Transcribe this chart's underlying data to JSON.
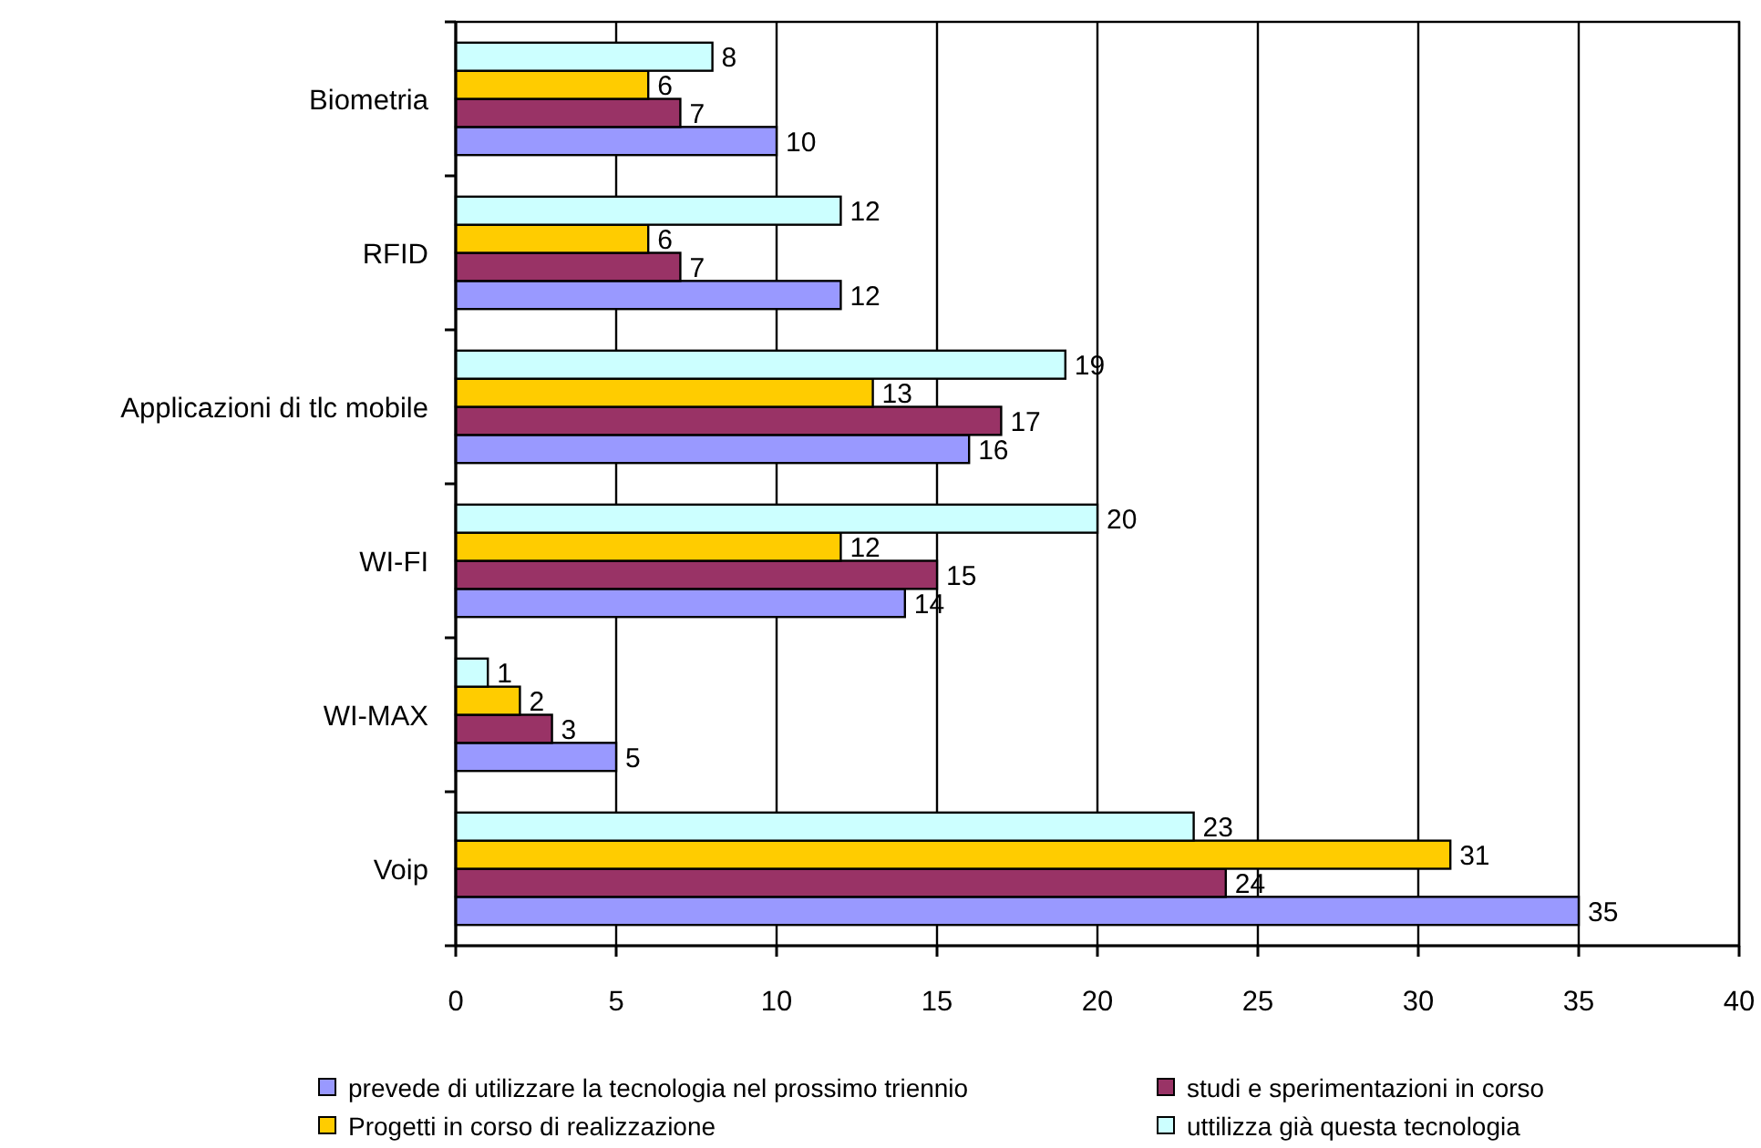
{
  "chart_data": {
    "type": "bar",
    "orientation": "horizontal",
    "categories": [
      "Biometria",
      "RFID",
      "Applicazioni di tlc mobile",
      "WI-FI",
      "WI-MAX",
      "Voip"
    ],
    "series": [
      {
        "name": "prevede di utilizzare la tecnologia nel prossimo triennio",
        "color": "#9999ff",
        "values": [
          10,
          12,
          16,
          14,
          5,
          35
        ]
      },
      {
        "name": "studi e sperimentazioni in corso",
        "color": "#993366",
        "values": [
          7,
          7,
          17,
          15,
          3,
          24
        ]
      },
      {
        "name": "Progetti in corso di realizzazione",
        "color": "#ffcc00",
        "values": [
          6,
          6,
          13,
          12,
          2,
          31
        ]
      },
      {
        "name": "uttilizza già questa tecnologia",
        "color": "#ccffff",
        "values": [
          8,
          12,
          19,
          20,
          1,
          23
        ]
      }
    ],
    "xlim": [
      0,
      40
    ],
    "xticks": [
      0,
      5,
      10,
      15,
      20,
      25,
      30,
      35,
      40
    ],
    "grid": "x",
    "legend": "bottom",
    "data_labels": true
  }
}
